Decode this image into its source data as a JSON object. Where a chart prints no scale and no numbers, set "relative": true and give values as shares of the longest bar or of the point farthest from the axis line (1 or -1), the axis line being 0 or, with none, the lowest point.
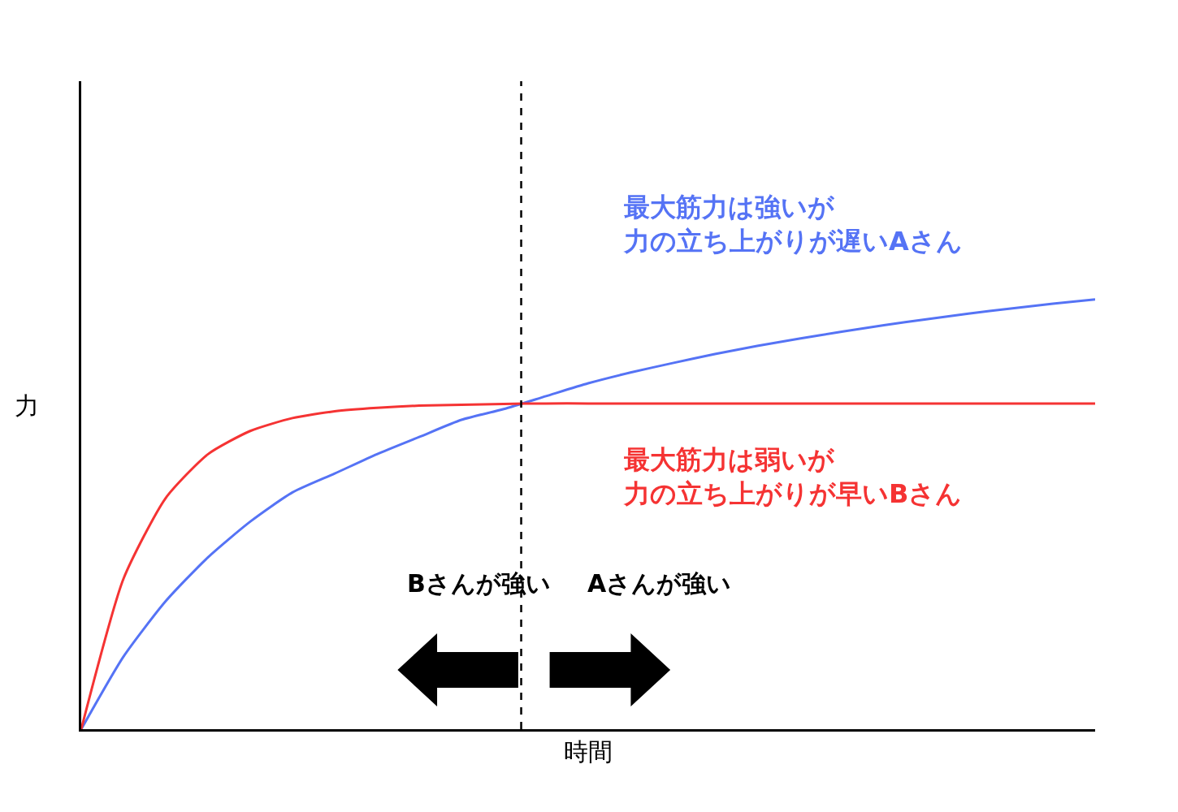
{
  "chart_data": {
    "type": "line",
    "relative": true,
    "xlabel": "時間",
    "ylabel": "力",
    "categories": [
      null,
      null,
      null,
      null,
      null,
      null,
      null,
      null,
      null,
      null,
      null,
      null,
      null,
      null,
      null,
      null,
      null,
      null,
      null,
      null,
      null,
      null,
      null,
      null,
      null
    ],
    "series": [
      {
        "name": "最大筋力は強いが力の立ち上がりが遅いAさん",
        "color": "#5573f5",
        "values": [
          0,
          0.169,
          0.298,
          0.4,
          0.483,
          0.551,
          0.595,
          0.64,
          0.68,
          0.72,
          0.745,
          0.775,
          0.805,
          0.83,
          0.852,
          0.873,
          0.892,
          0.909,
          0.925,
          0.94,
          0.954,
          0.967,
          0.979,
          0.99,
          1.0
        ]
      },
      {
        "name": "最大筋力は弱いが力の立ち上がりが早いBさん",
        "color": "#f53333",
        "values": [
          0,
          0.35,
          0.538,
          0.64,
          0.694,
          0.724,
          0.74,
          0.748,
          0.753,
          0.755,
          0.757,
          0.758,
          0.758,
          0.758,
          0.758,
          0.758,
          0.758,
          0.758,
          0.758,
          0.758,
          0.758,
          0.758,
          0.758,
          0.758,
          0.758
        ]
      }
    ],
    "annotations": [
      "Bさんが強い",
      "Aさんが強い"
    ],
    "legend": false,
    "tick_labels": false
  }
}
